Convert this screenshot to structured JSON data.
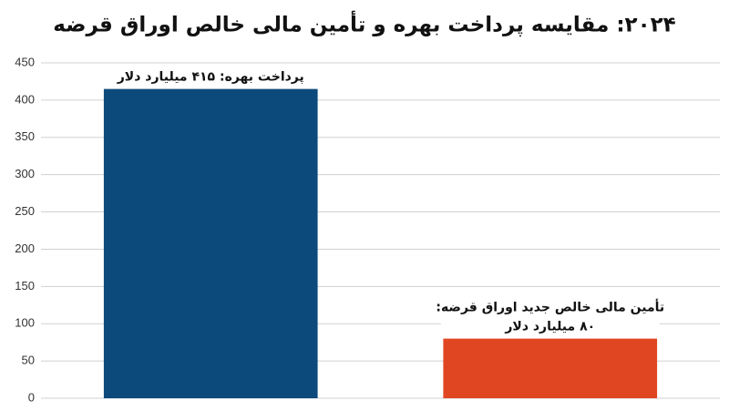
{
  "chart_data": {
    "type": "bar",
    "title": "۲۰۲۴: مقایسه پرداخت بهره و تأمین مالی خالص اوراق قرضه",
    "categories": [
      null,
      null
    ],
    "values": [
      415,
      80
    ],
    "value_labels": [
      [
        "پرداخت بهره: ۴۱۵ میلیارد دلار"
      ],
      [
        "تأمین مالی خالص جدید اوراق قرضه:",
        "۸۰ میلیارد دلار"
      ]
    ],
    "colors": [
      "#0c4a7b",
      "#e04622"
    ],
    "ylim": [
      0,
      450
    ],
    "yticks": [
      0,
      50,
      100,
      150,
      200,
      250,
      300,
      350,
      400,
      450
    ],
    "grid": true
  }
}
